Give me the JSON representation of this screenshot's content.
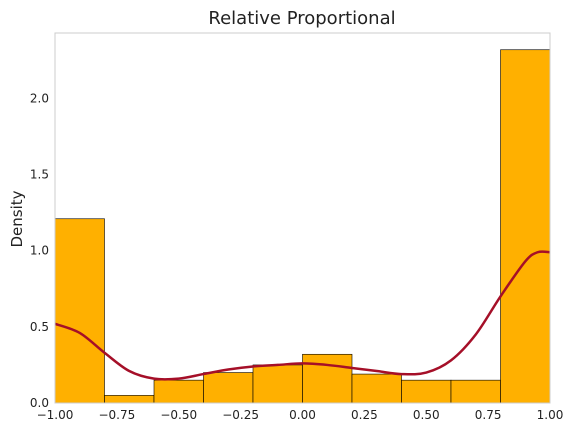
{
  "chart_data": {
    "type": "bar",
    "title": "Relative Proportional",
    "xlabel": "",
    "ylabel": "Density",
    "xlim": [
      -1.0,
      1.0
    ],
    "ylim": [
      0,
      2.43
    ],
    "grid": false,
    "xticks": [
      "−1.00",
      "−0.75",
      "−0.50",
      "−0.25",
      "0.00",
      "0.25",
      "0.50",
      "0.75",
      "1.00"
    ],
    "xtick_values": [
      -1.0,
      -0.75,
      -0.5,
      -0.25,
      0.0,
      0.25,
      0.5,
      0.75,
      1.0
    ],
    "yticks": [
      "0.0",
      "0.5",
      "1.0",
      "1.5",
      "2.0"
    ],
    "ytick_values": [
      0.0,
      0.5,
      1.0,
      1.5,
      2.0
    ],
    "bin_edges": [
      -1.0,
      -0.8,
      -0.6,
      -0.4,
      -0.2,
      0.0,
      0.2,
      0.4,
      0.6,
      0.8,
      1.0
    ],
    "values": [
      1.21,
      0.05,
      0.15,
      0.2,
      0.25,
      0.32,
      0.19,
      0.15,
      0.15,
      2.32
    ],
    "bar_color": "#ffb000",
    "bar_edge_color": "#000000",
    "kde": {
      "color": "#a50f28",
      "x": [
        -1.0,
        -0.9,
        -0.8,
        -0.7,
        -0.6,
        -0.5,
        -0.4,
        -0.3,
        -0.2,
        -0.1,
        0.0,
        0.1,
        0.2,
        0.3,
        0.4,
        0.5,
        0.6,
        0.7,
        0.8,
        0.9,
        0.95,
        1.0
      ],
      "y": [
        0.52,
        0.46,
        0.33,
        0.21,
        0.16,
        0.16,
        0.19,
        0.22,
        0.24,
        0.25,
        0.26,
        0.25,
        0.23,
        0.21,
        0.19,
        0.2,
        0.28,
        0.45,
        0.7,
        0.93,
        0.99,
        0.99
      ]
    }
  }
}
